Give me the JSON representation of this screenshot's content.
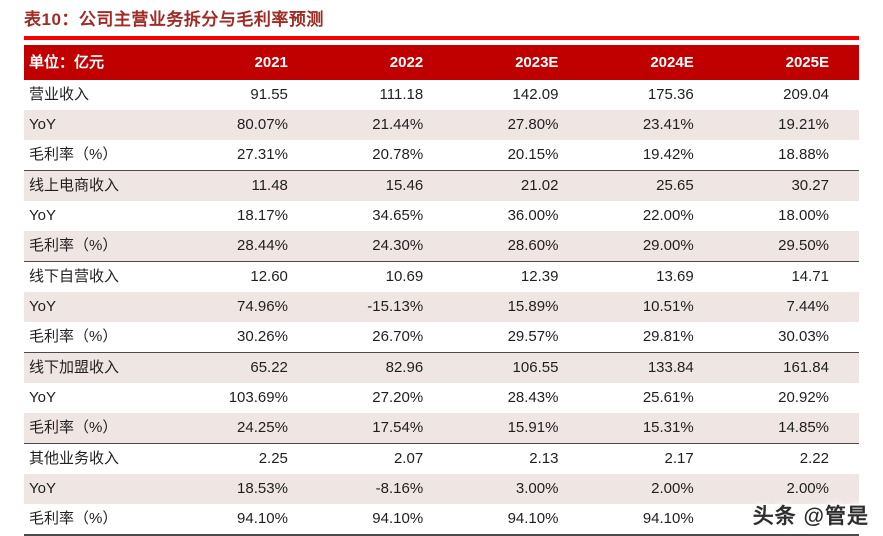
{
  "title": "表10：公司主营业务拆分与毛利率预测",
  "table": {
    "unit_label": "单位：亿元",
    "columns": [
      "2021",
      "2022",
      "2023E",
      "2024E",
      "2025E"
    ],
    "rows": [
      {
        "label": "营业收入",
        "values": [
          "91.55",
          "111.18",
          "142.09",
          "175.36",
          "209.04"
        ],
        "section_start": true
      },
      {
        "label": "YoY",
        "values": [
          "80.07%",
          "21.44%",
          "27.80%",
          "23.41%",
          "19.21%"
        ]
      },
      {
        "label": "毛利率（%）",
        "values": [
          "27.31%",
          "20.78%",
          "20.15%",
          "19.42%",
          "18.88%"
        ]
      },
      {
        "label": "线上电商收入",
        "values": [
          "11.48",
          "15.46",
          "21.02",
          "25.65",
          "30.27"
        ],
        "section_start": true
      },
      {
        "label": "YoY",
        "values": [
          "18.17%",
          "34.65%",
          "36.00%",
          "22.00%",
          "18.00%"
        ]
      },
      {
        "label": "毛利率（%）",
        "values": [
          "28.44%",
          "24.30%",
          "28.60%",
          "29.00%",
          "29.50%"
        ]
      },
      {
        "label": "线下自营收入",
        "values": [
          "12.60",
          "10.69",
          "12.39",
          "13.69",
          "14.71"
        ],
        "section_start": true
      },
      {
        "label": "YoY",
        "values": [
          "74.96%",
          "-15.13%",
          "15.89%",
          "10.51%",
          "7.44%"
        ]
      },
      {
        "label": "毛利率（%）",
        "values": [
          "30.26%",
          "26.70%",
          "29.57%",
          "29.81%",
          "30.03%"
        ]
      },
      {
        "label": "线下加盟收入",
        "values": [
          "65.22",
          "82.96",
          "106.55",
          "133.84",
          "161.84"
        ],
        "section_start": true
      },
      {
        "label": "YoY",
        "values": [
          "103.69%",
          "27.20%",
          "28.43%",
          "25.61%",
          "20.92%"
        ]
      },
      {
        "label": "毛利率（%）",
        "values": [
          "24.25%",
          "17.54%",
          "15.91%",
          "15.31%",
          "14.85%"
        ]
      },
      {
        "label": "其他业务收入",
        "values": [
          "2.25",
          "2.07",
          "2.13",
          "2.17",
          "2.22"
        ],
        "section_start": true
      },
      {
        "label": "YoY",
        "values": [
          "18.53%",
          "-8.16%",
          "3.00%",
          "2.00%",
          "2.00%"
        ]
      },
      {
        "label": "毛利率（%）",
        "values": [
          "94.10%",
          "94.10%",
          "94.10%",
          "94.10%",
          ""
        ]
      }
    ]
  },
  "watermark": "头条 @管是",
  "colors": {
    "header_bg": "#C00000",
    "title": "#9E2B25",
    "rule": "#F40000",
    "stripe": "#EFE5E3"
  }
}
